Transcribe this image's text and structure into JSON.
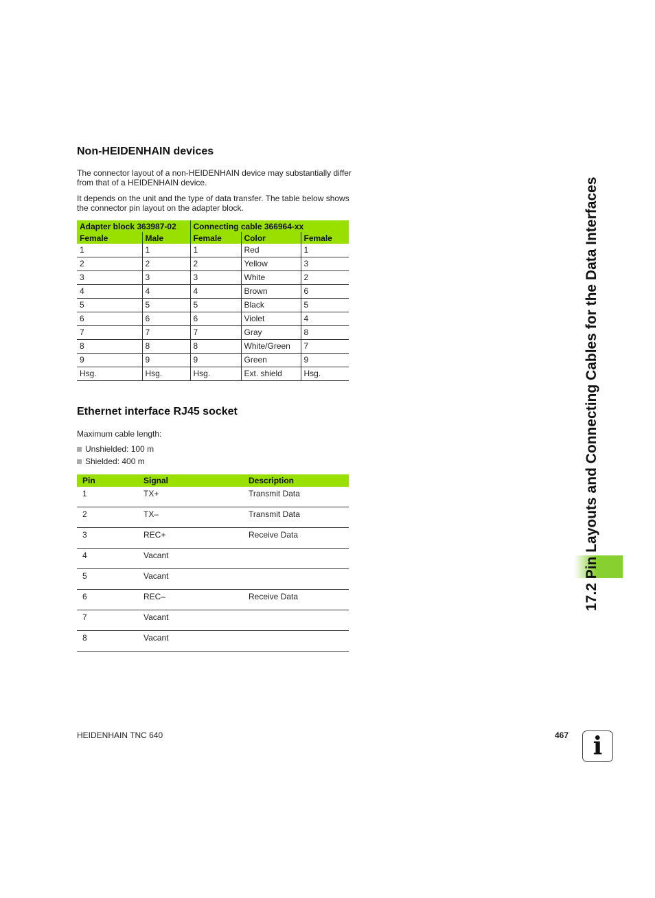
{
  "section1": {
    "title": "Non-HEIDENHAIN devices",
    "para1": "The connector layout of a non-HEIDENHAIN device may substantially differ from that of a HEIDENHAIN device.",
    "para2": "It depends on the unit and the type of data transfer. The table below shows the connector pin layout on the adapter block.",
    "table": {
      "group_headers": [
        "Adapter block 363987-02",
        "Connecting cable 366964-xx"
      ],
      "headers": [
        "Female",
        "Male",
        "Female",
        "Color",
        "Female"
      ],
      "rows": [
        [
          "1",
          "1",
          "1",
          "Red",
          "1"
        ],
        [
          "2",
          "2",
          "2",
          "Yellow",
          "3"
        ],
        [
          "3",
          "3",
          "3",
          "White",
          "2"
        ],
        [
          "4",
          "4",
          "4",
          "Brown",
          "6"
        ],
        [
          "5",
          "5",
          "5",
          "Black",
          "5"
        ],
        [
          "6",
          "6",
          "6",
          "Violet",
          "4"
        ],
        [
          "7",
          "7",
          "7",
          "Gray",
          "8"
        ],
        [
          "8",
          "8",
          "8",
          "White/Green",
          "7"
        ],
        [
          "9",
          "9",
          "9",
          "Green",
          "9"
        ],
        [
          "Hsg.",
          "Hsg.",
          "Hsg.",
          "Ext. shield",
          "Hsg."
        ]
      ]
    }
  },
  "section2": {
    "title": "Ethernet interface RJ45 socket",
    "intro": "Maximum cable length:",
    "bullets": [
      "Unshielded: 100 m",
      "Shielded: 400 m"
    ],
    "table": {
      "headers": [
        "Pin",
        "Signal",
        "Description"
      ],
      "rows": [
        [
          "1",
          "TX+",
          "Transmit Data"
        ],
        [
          "2",
          "TX–",
          "Transmit Data"
        ],
        [
          "3",
          "REC+",
          "Receive Data"
        ],
        [
          "4",
          "Vacant",
          ""
        ],
        [
          "5",
          "Vacant",
          ""
        ],
        [
          "6",
          "REC–",
          "Receive Data"
        ],
        [
          "7",
          "Vacant",
          ""
        ],
        [
          "8",
          "Vacant",
          ""
        ]
      ]
    }
  },
  "side_title": "17.2 Pin Layouts and Connecting Cables for the Data Interfaces",
  "footer": {
    "product": "HEIDENHAIN TNC 640",
    "page": "467"
  },
  "info_icon": "info-icon",
  "colors": {
    "header_green": "#99e000",
    "tab_green": "#88d030"
  }
}
